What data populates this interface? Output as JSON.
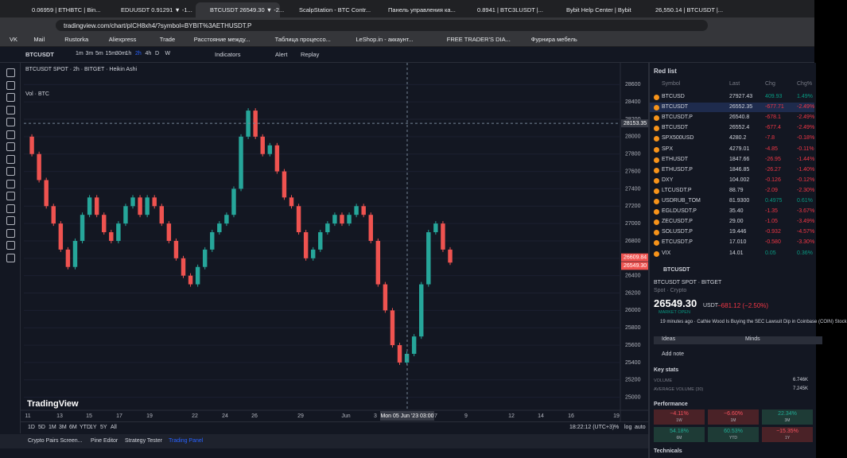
{
  "browser": {
    "tabs": [
      "0.06959 | ETHBTC | Bin...",
      "EDUUSDT 0.91291 ▼ -1...",
      "BTCUSDT 26549.30 ▼ -2...",
      "ScalpStation - BTC Contr...",
      "Панель управления ка...",
      "0.8941 | BTC3LUSDT |...",
      "Bybit Help Center | Bybit",
      "26,550.14 | BTCUSDT |..."
    ],
    "url": "tradingview.com/chart/pICH8xh4/?symbol=BYBIT%3AETHUSDT.P",
    "bookmarks": [
      "VK",
      "Mail",
      "Rustorka",
      "Aliexpress",
      "Trade",
      "Расстояние между...",
      "Таблица процессо...",
      "LeShop.in - аккаунт...",
      "FREE TRADER'S DIA...",
      "Фурнира мебель"
    ]
  },
  "toolbar": {
    "symbol": "BTCUSDT",
    "intervals": [
      "1m",
      "3m",
      "5m",
      "15m",
      "30m",
      "1h",
      "2h",
      "4h",
      "D",
      "W"
    ],
    "indicators": "Indicators",
    "alert": "Alert",
    "replay": "Replay"
  },
  "chart_data": {
    "type": "candlestick",
    "title": "BTCUSDT SPOT · 2h · BITGET · Heikin Ashi",
    "volume_label": "Vol · BTC",
    "watermark": "TradingView",
    "values": [
      28000,
      27800,
      27500,
      27200,
      27000,
      26700,
      26500,
      26800,
      27100,
      27300,
      27100,
      26900,
      26800,
      27000,
      27200,
      27300,
      27100,
      27300,
      27200,
      27000,
      26800,
      26600,
      26400,
      26300,
      26500,
      26700,
      26900,
      27000,
      27100,
      27400,
      28000,
      28300,
      28000,
      27800,
      27900,
      27600,
      27300,
      27200,
      26900,
      26600,
      26700,
      26900,
      27000,
      27100,
      27000,
      27100,
      27200,
      27100,
      26800,
      26300,
      26000,
      25600,
      25400,
      25500,
      25700,
      26300,
      26900,
      27000,
      26700,
      26550
    ],
    "ylim": [
      24850,
      28850
    ],
    "yticks": [
      25000,
      25200,
      25400,
      25600,
      25800,
      26000,
      26200,
      26400,
      26600,
      26800,
      27000,
      27200,
      27400,
      27600,
      27800,
      28000,
      28200,
      28400,
      28600
    ],
    "x_labels": [
      "11",
      "13",
      "15",
      "17",
      "19",
      "22",
      "24",
      "26",
      "29",
      "Jun",
      "3",
      "7",
      "9",
      "12",
      "14",
      "16",
      "19"
    ],
    "crosshair_label": "Mon 05 Jun '23  03:00",
    "price_tags": [
      28153.35,
      26609.84,
      {
        "value": 26549.3,
        "label": "26549.30"
      }
    ],
    "up_color": "#26a69a",
    "down_color": "#ef5350"
  },
  "bottom": {
    "ranges": [
      "1D",
      "5D",
      "1M",
      "3M",
      "6M",
      "YTD",
      "1Y",
      "5Y",
      "All"
    ],
    "clock": "18:22:12 (UTC+3)",
    "scale": [
      "%",
      "log",
      "auto"
    ],
    "panels": [
      "Crypto Pairs Screen...",
      "Pine Editor",
      "Strategy Tester",
      "Trading Panel"
    ]
  },
  "watchlist": {
    "title": "Red list",
    "columns": [
      "Symbol",
      "Last",
      "Chg",
      "Chg%"
    ],
    "rows": [
      [
        "BTCUSD",
        "27927.43",
        "409.93",
        "1.49%"
      ],
      [
        "BTCUSDT",
        "26552.35",
        "-677.71",
        "-2.49%"
      ],
      [
        "BTCUSDT.P",
        "26540.8",
        "-678.1",
        "-2.49%"
      ],
      [
        "BTCUSDT",
        "26552.4",
        "-677.4",
        "-2.49%"
      ],
      [
        "SPX500USD",
        "4280.2",
        "-7.8",
        "-0.18%"
      ],
      [
        "SPX",
        "4279.01",
        "-4.85",
        "-0.11%"
      ],
      [
        "ETHUSDT",
        "1847.66",
        "-26.95",
        "-1.44%"
      ],
      [
        "ETHUSDT.P",
        "1846.85",
        "-26.27",
        "-1.40%"
      ],
      [
        "DXY",
        "104.002",
        "-0.126",
        "-0.12%"
      ],
      [
        "LTCUSDT.P",
        "88.79",
        "-2.09",
        "-2.30%"
      ],
      [
        "USDRUB_TOM",
        "81.9300",
        "0.4975",
        "0.61%"
      ],
      [
        "EGLDUSDT.P",
        "35.40",
        "-1.35",
        "-3.67%"
      ],
      [
        "ZECUSDT.P",
        "29.00",
        "-1.05",
        "-3.49%"
      ],
      [
        "SOLUSDT.P",
        "19.446",
        "-0.932",
        "-4.57%"
      ],
      [
        "ETCUSDT.P",
        "17.010",
        "-0.580",
        "-3.30%"
      ],
      [
        "VIX",
        "14.01",
        "0.05",
        "0.36%"
      ]
    ]
  },
  "details": {
    "symbol": "BTCUSDT",
    "subtitle": "BTCUSDT SPOT · BITGET",
    "kind": "Spot · Crypto",
    "price": "26549.30",
    "currency": "USDT",
    "change": "−681.12 (−2.50%)",
    "status": "MARKET OPEN",
    "news": "19 minutes ago · Cathie Wood Is Buying the SEC Lawsuit Dip in Coinbase (COIN) Stock",
    "ideas": "Ideas",
    "minds": "Minds",
    "add_note": "Add note",
    "key_stats": "Key stats",
    "stats": [
      [
        "VOLUME",
        "6.746K"
      ],
      [
        "AVERAGE VOLUME (30)",
        "7.245K"
      ]
    ],
    "performance": "Performance",
    "perf": [
      [
        "−4.11%",
        "1W"
      ],
      [
        "−6.60%",
        "1M"
      ],
      [
        "22.34%",
        "3M"
      ],
      [
        "54.18%",
        "6M"
      ],
      [
        "60.53%",
        "YTD"
      ],
      [
        "−15.35%",
        "1Y"
      ]
    ],
    "technicals": "Technicals"
  }
}
